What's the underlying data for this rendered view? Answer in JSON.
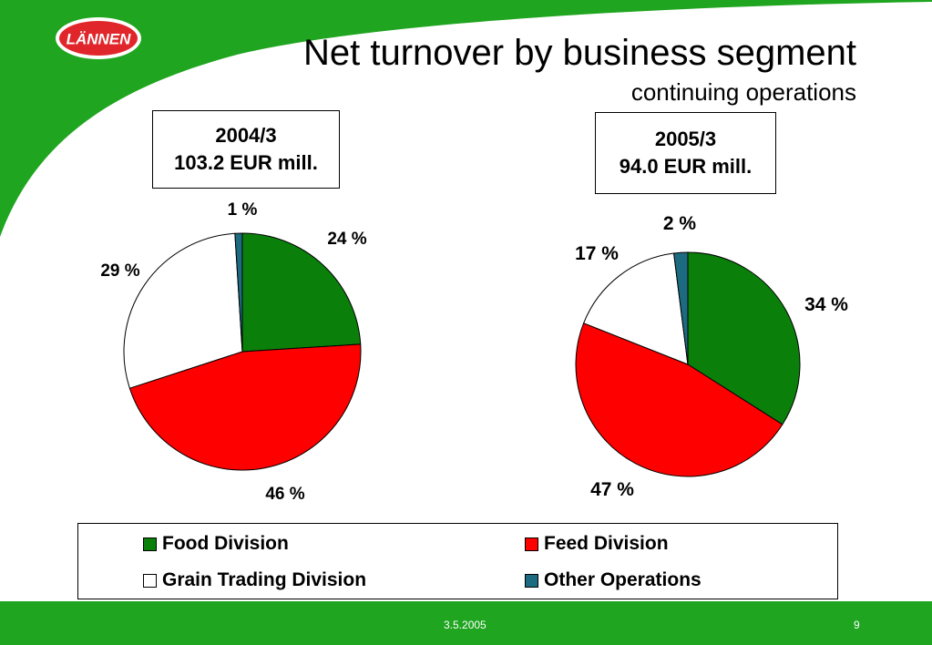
{
  "slide": {
    "title": "Net turnover by business segment",
    "subtitle": "continuing operations",
    "logo_text": "LÄNNEN",
    "footer_date": "3.5.2005",
    "page_number": "9",
    "colors": {
      "accent_green": "#1fa51f",
      "logo_red": "#e0262b"
    }
  },
  "chart_data": [
    {
      "type": "pie",
      "period": "2004/3",
      "total": "103.2 EUR mill.",
      "slices": [
        {
          "name": "Food Division",
          "value": 24,
          "label": "24 %",
          "color": "#0a800a"
        },
        {
          "name": "Feed Division",
          "value": 46,
          "label": "46 %",
          "color": "#ff0000"
        },
        {
          "name": "Grain Trading Division",
          "value": 29,
          "label": "29 %",
          "color": "#ffffff"
        },
        {
          "name": "Other Operations",
          "value": 1,
          "label": "1 %",
          "color": "#1d6b80"
        }
      ]
    },
    {
      "type": "pie",
      "period": "2005/3",
      "total": "94.0 EUR mill.",
      "slices": [
        {
          "name": "Food Division",
          "value": 34,
          "label": "34 %",
          "color": "#0a800a"
        },
        {
          "name": "Feed Division",
          "value": 47,
          "label": "47 %",
          "color": "#ff0000"
        },
        {
          "name": "Grain Trading Division",
          "value": 17,
          "label": "17 %",
          "color": "#ffffff"
        },
        {
          "name": "Other Operations",
          "value": 2,
          "label": "2 %",
          "color": "#1d6b80"
        }
      ]
    }
  ],
  "legend": {
    "items": [
      {
        "label": "Food Division",
        "color": "#0a800a"
      },
      {
        "label": "Feed Division",
        "color": "#ff0000"
      },
      {
        "label": "Grain Trading Division",
        "color": "#ffffff"
      },
      {
        "label": "Other Operations",
        "color": "#1d6b80"
      }
    ]
  }
}
